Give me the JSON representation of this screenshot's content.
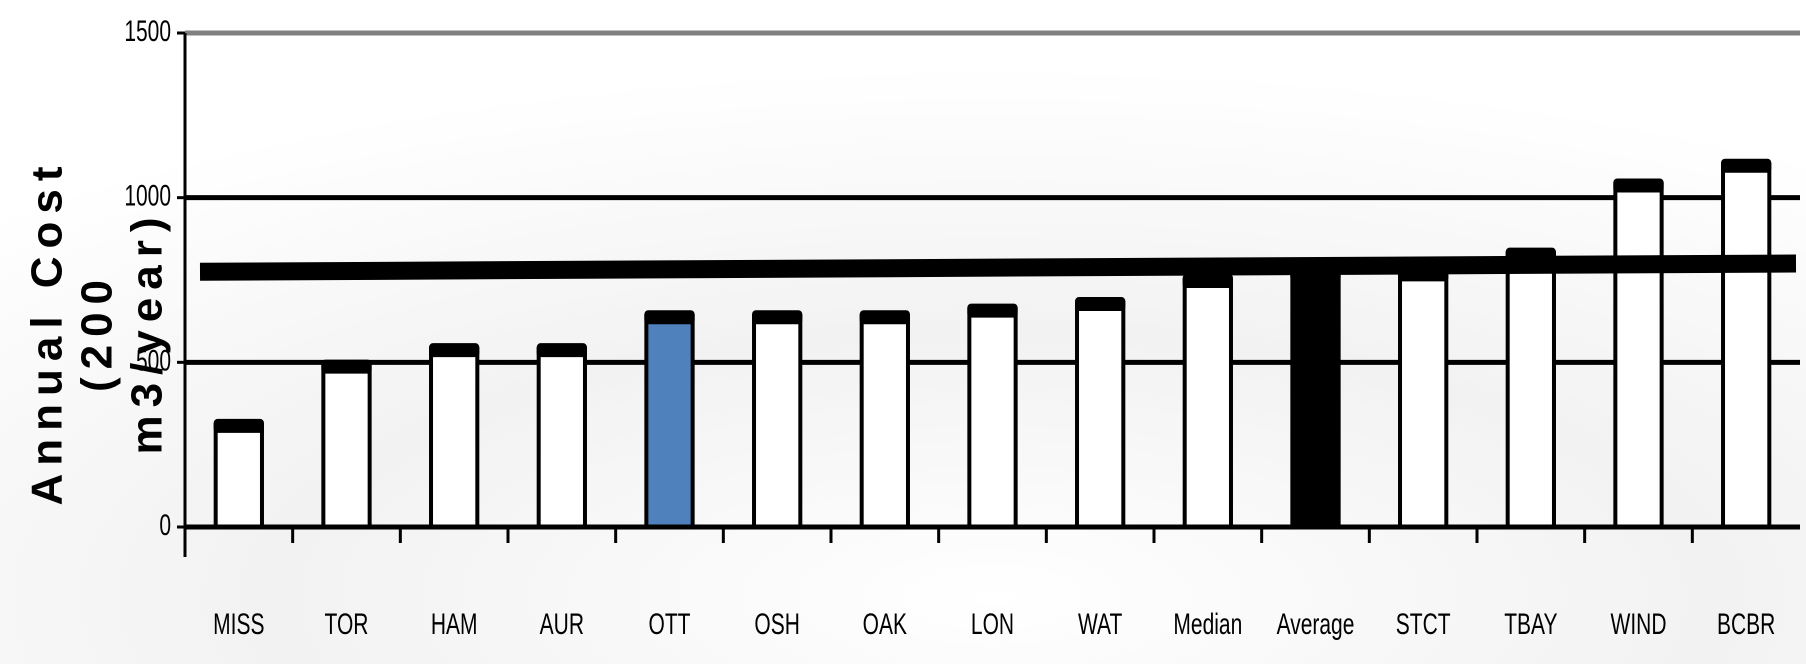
{
  "chart_data": {
    "type": "bar",
    "ylabel_lines": [
      "Annual Cost",
      "(200",
      "m3/year)"
    ],
    "categories": [
      "MISS",
      "TOR",
      "HAM",
      "AUR",
      "OTT",
      "OSH",
      "OAK",
      "LON",
      "WAT",
      "Median",
      "Average",
      "STCT",
      "TBAY",
      "WIND",
      "BCBR"
    ],
    "values": [
      310,
      490,
      540,
      540,
      640,
      640,
      640,
      660,
      680,
      750,
      770,
      770,
      830,
      1040,
      1100
    ],
    "colors": [
      "#ffffff",
      "#ffffff",
      "#ffffff",
      "#ffffff",
      "#4f81bd",
      "#ffffff",
      "#ffffff",
      "#ffffff",
      "#ffffff",
      "#ffffff",
      "#000000",
      "#ffffff",
      "#ffffff",
      "#ffffff",
      "#ffffff"
    ],
    "reference_line": [
      775,
      800
    ],
    "ylim": [
      0,
      1500
    ],
    "yticks": [
      0,
      500,
      1000,
      1500
    ],
    "grid": true
  }
}
